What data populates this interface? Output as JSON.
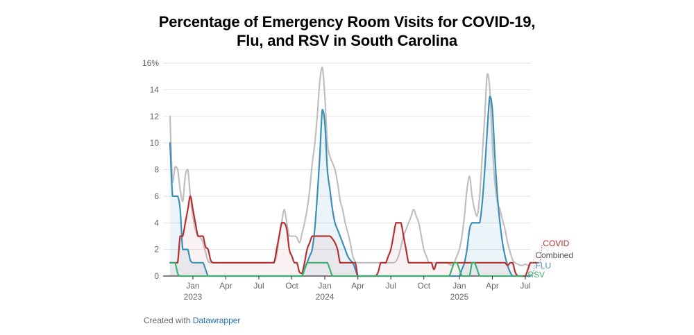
{
  "chart_data": {
    "type": "line",
    "title_line1": "Percentage of Emergency Room Visits for COVID-19,",
    "title_line2": "Flu, and RSV in South Carolina",
    "ylim": [
      0,
      16
    ],
    "y_ticks": [
      {
        "value": 0,
        "label": "0"
      },
      {
        "value": 2,
        "label": "2"
      },
      {
        "value": 4,
        "label": "4"
      },
      {
        "value": 6,
        "label": "6"
      },
      {
        "value": 8,
        "label": "8"
      },
      {
        "value": 10,
        "label": "10"
      },
      {
        "value": 12,
        "label": "12"
      },
      {
        "value": 14,
        "label": "14"
      },
      {
        "value": 16,
        "label": "16%"
      }
    ],
    "x_domain": [
      0,
      140
    ],
    "x_ticks": [
      {
        "week": 9,
        "label": "Jan",
        "year": "2023"
      },
      {
        "week": 22,
        "label": "Apr"
      },
      {
        "week": 35,
        "label": "Jul"
      },
      {
        "week": 48,
        "label": "Oct"
      },
      {
        "week": 61,
        "label": "Jan",
        "year": "2024"
      },
      {
        "week": 74,
        "label": "Apr"
      },
      {
        "week": 87,
        "label": "Jul"
      },
      {
        "week": 100,
        "label": "Oct"
      },
      {
        "week": 114,
        "label": "Jan",
        "year": "2025"
      },
      {
        "week": 127,
        "label": "Apr"
      },
      {
        "week": 140,
        "label": "Jul"
      }
    ],
    "series": [
      {
        "name": "Combined",
        "label": "Combined",
        "color": "#bfbfbf",
        "fill": "none",
        "width": 2.2,
        "values": [
          12,
          7,
          8.2,
          8,
          6.5,
          5.6,
          7.5,
          8,
          6,
          4.5,
          3.5,
          3,
          2.9,
          2.5,
          1.8,
          1.1,
          1,
          1,
          1,
          1,
          1,
          1,
          1,
          1,
          1,
          1,
          1,
          1,
          1,
          1,
          1,
          1,
          1,
          1,
          1,
          1,
          1,
          1,
          1,
          1,
          1,
          1.1,
          1.5,
          3,
          4,
          5,
          4,
          3,
          3,
          3,
          2.9,
          2.5,
          3.2,
          4,
          5,
          6.4,
          8.4,
          9.9,
          12,
          14.6,
          15.7,
          13.5,
          10,
          9,
          8.5,
          8,
          7,
          5.7,
          5,
          4,
          3.3,
          2.5,
          1.5,
          1.1,
          1,
          1,
          1,
          1,
          1,
          1,
          1,
          1,
          1,
          1,
          1,
          1,
          1,
          1,
          1,
          1.1,
          1.5,
          2.2,
          3,
          3.5,
          4,
          4.5,
          5,
          4.5,
          4,
          3,
          2,
          1.5,
          1,
          1,
          1,
          1,
          1,
          1,
          1,
          1,
          0.9,
          0.8,
          1,
          1.5,
          2,
          3,
          4.5,
          6.5,
          7.5,
          6,
          5,
          4.5,
          6,
          9,
          12,
          15.2,
          14,
          10,
          7,
          5.5,
          5,
          4.2,
          3.5,
          2.5,
          1.8,
          1.2,
          1,
          0.9,
          0.8,
          0.8,
          0.9,
          0.8,
          1
        ]
      },
      {
        "name": "FLU",
        "label": "FLU",
        "color": "#3d8fb8",
        "fill": "rgba(61,143,184,0.10)",
        "width": 2.2,
        "values": [
          10,
          6,
          6,
          6,
          5,
          2,
          2,
          2,
          1.2,
          1,
          1,
          1,
          1,
          1,
          0.5,
          0,
          0,
          0,
          0,
          0,
          0,
          0,
          0,
          0,
          0,
          0,
          0,
          0,
          0,
          0,
          0,
          0,
          0,
          0,
          0,
          0,
          0,
          0,
          0,
          0,
          0,
          0,
          0,
          0,
          0,
          0,
          0,
          0,
          0,
          0,
          0,
          0,
          0,
          0.5,
          1,
          1.5,
          2,
          3.5,
          6,
          9,
          12.5,
          11.5,
          8,
          6.5,
          5,
          4,
          3.5,
          3,
          2.5,
          2,
          1.5,
          1.2,
          1,
          0.5,
          0,
          0,
          0,
          0,
          0,
          0,
          0,
          0,
          0,
          0,
          0,
          0,
          0,
          0,
          0,
          0,
          0,
          0,
          0,
          0,
          0,
          0,
          0,
          0,
          0,
          0,
          0,
          0,
          0,
          0,
          0,
          0,
          0,
          0,
          0,
          0,
          0,
          0,
          0,
          0,
          0,
          0.5,
          1,
          2,
          3.5,
          4,
          4,
          4,
          4,
          5.5,
          8,
          11,
          13.5,
          12.5,
          9,
          6,
          4,
          2.5,
          1.5,
          0.8,
          0.3,
          0,
          0,
          0,
          0,
          0,
          0,
          0,
          0
        ]
      },
      {
        "name": "COVID",
        "label": "COVID",
        "color": "#b5302f",
        "fill": "rgba(181,48,47,0.06)",
        "width": 2.2,
        "values": [
          1,
          1,
          1,
          1,
          3,
          3,
          4,
          5,
          6,
          5,
          4,
          3,
          3,
          3,
          2.2,
          2,
          1.2,
          1,
          1,
          1,
          1,
          1,
          1,
          1,
          1,
          1,
          1,
          1,
          1,
          1,
          1,
          1,
          1,
          1,
          1,
          1,
          1,
          1,
          1,
          1,
          1,
          1,
          2,
          3,
          4,
          4,
          3.5,
          2,
          1.5,
          1,
          1,
          0.3,
          0.2,
          1,
          2,
          2.5,
          3,
          3,
          3,
          3,
          3,
          3,
          3,
          3,
          2.8,
          2.5,
          2,
          1,
          1,
          1,
          1,
          1,
          1,
          1,
          0,
          0,
          0,
          0,
          0,
          0,
          0,
          0,
          0.3,
          1,
          1,
          1,
          1.5,
          2,
          3,
          4,
          4,
          4,
          3,
          2,
          1,
          1,
          1,
          1,
          1,
          1,
          1,
          1,
          1,
          1,
          0.5,
          1,
          1,
          1,
          1,
          1,
          1,
          1,
          1,
          1,
          1,
          1,
          1,
          1,
          1,
          1,
          1,
          1,
          1,
          1,
          1,
          1,
          1,
          1,
          1,
          1,
          1,
          1,
          1,
          0.8,
          1,
          1,
          0.3,
          0,
          0,
          0,
          0,
          0.5,
          1,
          1,
          1,
          1
        ]
      },
      {
        "name": "RSV",
        "label": "RSV",
        "color": "#3bb272",
        "fill": "none",
        "width": 2.2,
        "values": [
          1,
          1,
          1,
          0.2,
          0,
          0,
          0,
          0,
          0,
          0,
          0,
          0,
          0,
          0,
          0,
          0,
          0,
          0,
          0,
          0,
          0,
          0,
          0,
          0,
          0,
          0,
          0,
          0,
          0,
          0,
          0,
          0,
          0,
          0,
          0,
          0,
          0,
          0,
          0,
          0,
          0,
          0,
          0,
          0,
          0,
          0,
          0,
          0,
          0,
          0,
          0,
          0,
          0,
          0.5,
          1,
          1,
          1,
          1,
          1,
          1,
          1,
          1,
          1,
          0.5,
          0,
          0,
          0,
          0,
          0,
          0,
          0,
          0,
          0,
          0,
          0,
          0,
          0,
          0,
          0,
          0,
          0,
          0,
          0,
          0,
          0,
          0,
          0,
          0,
          0,
          0,
          0,
          0,
          0,
          0,
          0,
          0,
          0,
          0,
          0,
          0,
          0,
          0,
          0,
          0,
          0,
          0,
          0,
          0,
          0,
          0,
          0,
          0.5,
          1,
          1,
          0.5,
          0,
          0,
          0,
          0,
          1,
          1,
          0.5,
          0,
          0,
          0,
          0,
          0,
          0,
          0,
          0,
          0,
          0,
          0,
          0,
          0,
          0,
          0,
          0,
          0,
          0
        ]
      }
    ]
  },
  "footer": {
    "created_with": "Created with",
    "tool": "Datawrapper"
  }
}
